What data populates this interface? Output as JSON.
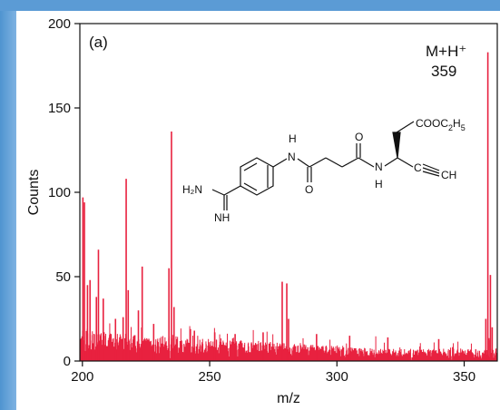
{
  "chart_data": {
    "type": "line",
    "panel_label": "(a)",
    "xlabel": "m/z",
    "ylabel": "Counts",
    "xlim": [
      199,
      363
    ],
    "ylim": [
      0,
      200
    ],
    "x_ticks": [
      200,
      250,
      300,
      350
    ],
    "y_ticks": [
      0,
      50,
      100,
      150,
      200
    ],
    "annotation": {
      "line1": "M+H⁺",
      "line2": "359"
    },
    "peaks": [
      {
        "x": 200.2,
        "y": 97
      },
      {
        "x": 200.8,
        "y": 94
      },
      {
        "x": 202,
        "y": 45
      },
      {
        "x": 203,
        "y": 48
      },
      {
        "x": 205.5,
        "y": 38
      },
      {
        "x": 206.3,
        "y": 66
      },
      {
        "x": 208.2,
        "y": 37
      },
      {
        "x": 213,
        "y": 25
      },
      {
        "x": 216,
        "y": 26
      },
      {
        "x": 217.2,
        "y": 108
      },
      {
        "x": 218,
        "y": 42
      },
      {
        "x": 222,
        "y": 30
      },
      {
        "x": 223.5,
        "y": 56
      },
      {
        "x": 228,
        "y": 22
      },
      {
        "x": 234,
        "y": 55
      },
      {
        "x": 235,
        "y": 136
      },
      {
        "x": 236,
        "y": 32
      },
      {
        "x": 244,
        "y": 18
      },
      {
        "x": 252,
        "y": 17
      },
      {
        "x": 260,
        "y": 16
      },
      {
        "x": 271,
        "y": 17
      },
      {
        "x": 278.5,
        "y": 47
      },
      {
        "x": 280.3,
        "y": 46
      },
      {
        "x": 281,
        "y": 25
      },
      {
        "x": 292,
        "y": 16
      },
      {
        "x": 305,
        "y": 15
      },
      {
        "x": 320,
        "y": 14
      },
      {
        "x": 340,
        "y": 13
      },
      {
        "x": 358.5,
        "y": 25
      },
      {
        "x": 359.3,
        "y": 183
      },
      {
        "x": 360.3,
        "y": 51
      },
      {
        "x": 361,
        "y": 20
      }
    ],
    "noise_level": 12,
    "series_color": "#e8213f"
  },
  "molecule": {
    "labels": {
      "h_top": "H",
      "n_left": "N",
      "o_left": "O",
      "o_right": "O",
      "n_right": "N",
      "h_bottom": "H",
      "h2n": "H₂N",
      "nh": "NH",
      "ester_main": "COOC",
      "ester_sub2": "2",
      "ester_h": "H",
      "ester_sub5": "5",
      "alkyne_c": "C",
      "alkyne_ch": "CH"
    }
  }
}
